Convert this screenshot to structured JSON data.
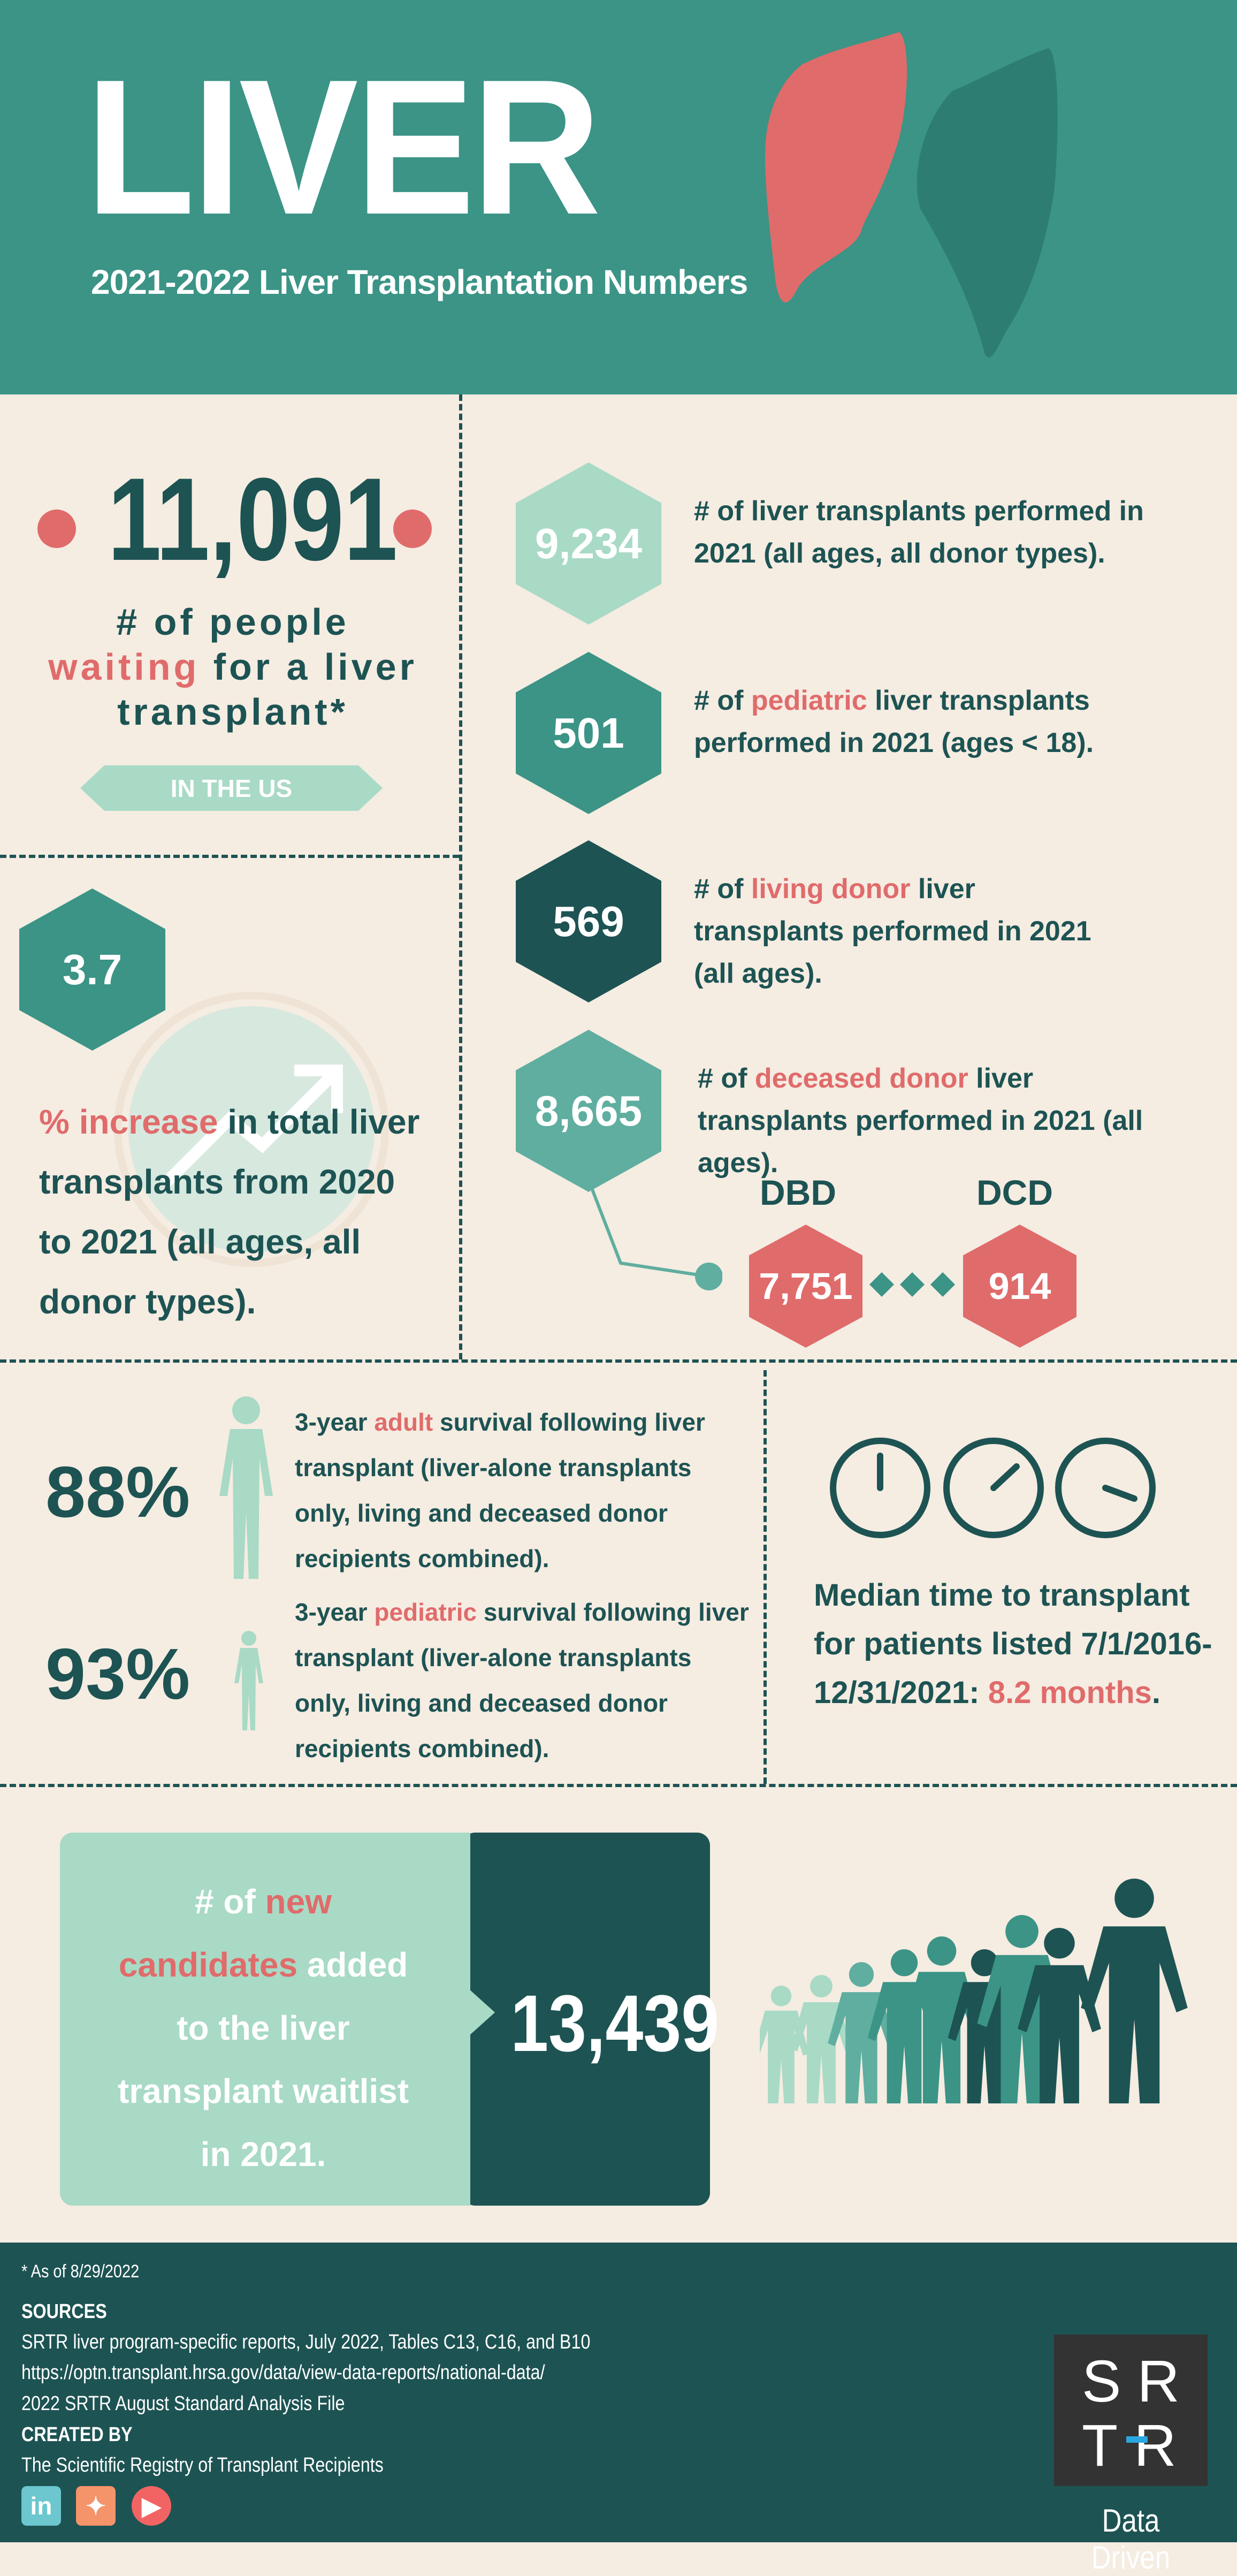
{
  "header": {
    "title": "LIVER",
    "subtitle": "2021-2022 Liver Transplantation Numbers"
  },
  "waiting": {
    "number": "11,091",
    "line1": "# of people",
    "line2_highlight": "waiting",
    "line2_rest": " for a liver",
    "line3": "transplant*",
    "badge": "IN THE US"
  },
  "increase": {
    "value": "3.7",
    "highlight": "% increase",
    "rest": " in total liver transplants from 2020 to 2021 (all ages, all donor types)."
  },
  "stats": [
    {
      "value": "9,234",
      "pre": "# of liver transplants performed in 2021 (all ages, all donor types).",
      "highlight": "",
      "post": "",
      "color": "#a8dac6"
    },
    {
      "value": "501",
      "pre": "# of ",
      "highlight": "pediatric",
      "post": " liver transplants performed in 2021 (ages < 18).",
      "color": "#3b9486"
    },
    {
      "value": "569",
      "pre": "# of ",
      "highlight": "living donor",
      "post": " liver transplants performed in 2021 (all ages).",
      "color": "#1d5353"
    },
    {
      "value": "8,665",
      "pre": "# of ",
      "highlight": "deceased donor",
      "post": " liver transplants performed in 2021 (all ages).",
      "color": "#5fae9f"
    }
  ],
  "donor_split": {
    "dbd_label": "DBD",
    "dbd_value": "7,751",
    "dcd_label": "DCD",
    "dcd_value": "914"
  },
  "survival": [
    {
      "value": "88%",
      "pre": "3-year ",
      "highlight": "adult",
      "post": " survival following liver transplant (liver-alone transplants only, living and deceased donor recipients combined)."
    },
    {
      "value": "93%",
      "pre": "3-year ",
      "highlight": "pediatric",
      "post": " survival following liver transplant (liver-alone transplants only, living and deceased donor recipients combined)."
    }
  ],
  "median": {
    "text": "Median time to transplant for patients listed 7/1/2016-12/31/2021: ",
    "highlight": "8.2 months",
    "end": "."
  },
  "new_candidates": {
    "pre": "# of ",
    "highlight": "new candidates",
    "post": " added to the liver transplant waitlist in 2021.",
    "value": "13,439"
  },
  "footer": {
    "note": "* As of 8/29/2022",
    "sources_heading": "SOURCES",
    "sources": [
      "SRTR liver program-specific reports, July 2022, Tables C13, C16, and B10",
      "https://optn.transplant.hrsa.gov/data/view-data-reports/national-data/",
      "2022 SRTR August Standard Analysis File"
    ],
    "created_heading": "CREATED BY",
    "created_by": "The Scientific Registry of Transplant Recipients",
    "logo_text": "SRTR",
    "tagline": "Data Driven",
    "social": [
      "linkedin-icon",
      "twitter-icon",
      "youtube-icon"
    ]
  },
  "colors": {
    "header": "#3b9486",
    "dark": "#1d5353",
    "mint": "#a8dac6",
    "red": "#e06b6b",
    "cream": "#f5ece2"
  }
}
